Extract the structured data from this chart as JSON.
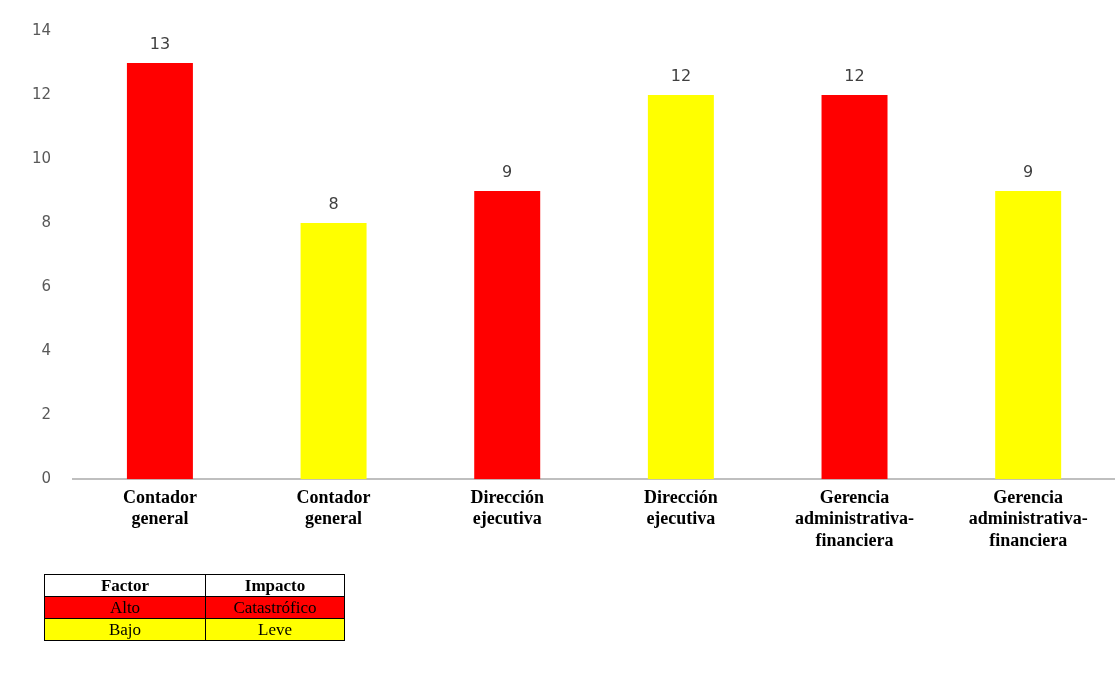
{
  "chart_data": {
    "type": "bar",
    "categories": [
      "Contador general",
      "Contador general",
      "Dirección ejecutiva",
      "Dirección ejecutiva",
      "Gerencia administrativa-financiera",
      "Gerencia administrativa-financiera"
    ],
    "values": [
      13,
      8,
      9,
      12,
      12,
      9
    ],
    "colors": [
      "#ff0000",
      "#ffff00",
      "#ff0000",
      "#ffff00",
      "#ff0000",
      "#ffff00"
    ],
    "ylim": [
      0,
      14
    ],
    "yticks": [
      0,
      2,
      4,
      6,
      8,
      10,
      12,
      14
    ],
    "grid": false,
    "legend": false,
    "data_labels": true,
    "annotations": [
      "Factor",
      "Impacto",
      "Alto",
      "Catastrófico",
      "Bajo",
      "Leve"
    ]
  }
}
